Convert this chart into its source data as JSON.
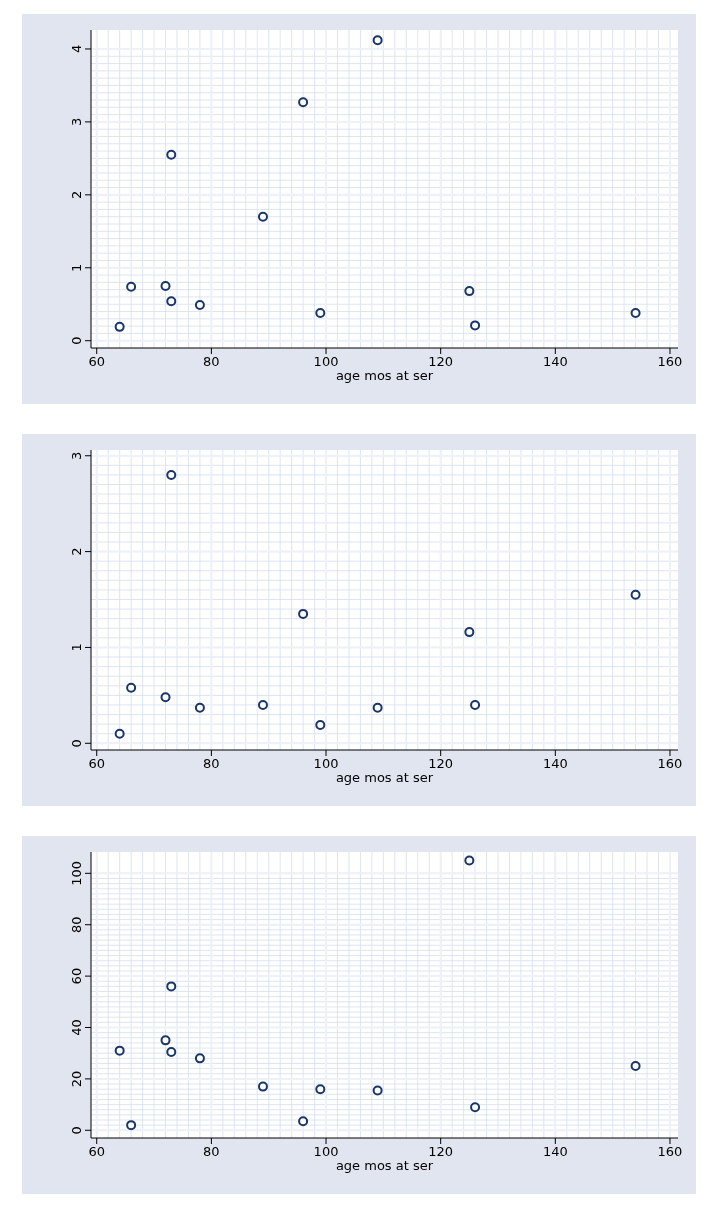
{
  "chart_data": [
    {
      "type": "scatter",
      "xlabel": "age mos at ser",
      "x": [
        64,
        66,
        72,
        73,
        73,
        78,
        89,
        96,
        99,
        109,
        125,
        126,
        154
      ],
      "series": [
        {
          "color": "#1a3668",
          "values": [
            0.19,
            0.74,
            0.75,
            2.55,
            0.54,
            0.49,
            1.7,
            3.27,
            0.38,
            4.12,
            0.68,
            0.21,
            0.38
          ]
        }
      ],
      "xlim": [
        59,
        161.4
      ],
      "xticks": [
        60,
        80,
        100,
        120,
        140,
        160
      ],
      "ylim": [
        -0.1,
        4.26
      ],
      "yticks": [
        0,
        1,
        2,
        3,
        4
      ],
      "grid": true,
      "marker": "circle"
    },
    {
      "type": "scatter",
      "xlabel": "age mos at ser",
      "series": [
        {
          "color": "#1a3668",
          "x": [
            64,
            66,
            72,
            73,
            78,
            89,
            96,
            99,
            109,
            125,
            126,
            154
          ],
          "values": [
            0.1,
            0.58,
            0.48,
            2.8,
            0.37,
            0.4,
            1.35,
            0.19,
            0.37,
            1.16,
            0.4,
            1.55
          ]
        }
      ],
      "xlim": [
        59,
        161.4
      ],
      "xticks": [
        60,
        80,
        100,
        120,
        140,
        160
      ],
      "ylim": [
        -0.07,
        3.06
      ],
      "yticks": [
        0,
        1,
        2,
        3
      ],
      "grid": true,
      "marker": "circle"
    },
    {
      "type": "scatter",
      "xlabel": "age mos at ser",
      "x": [
        64,
        66,
        72,
        73,
        73,
        78,
        89,
        96,
        99,
        109,
        125,
        126,
        154
      ],
      "series": [
        {
          "color": "#1a3668",
          "values": [
            31,
            2,
            35,
            56,
            30.5,
            28,
            17,
            3.5,
            16,
            15.5,
            105,
            9,
            25
          ]
        }
      ],
      "xlim": [
        59,
        161.4
      ],
      "xticks": [
        60,
        80,
        100,
        120,
        140,
        160
      ],
      "ylim": [
        -3,
        108.3
      ],
      "yticks": [
        0,
        20,
        40,
        60,
        80,
        100
      ],
      "grid": true,
      "marker": "circle"
    }
  ]
}
